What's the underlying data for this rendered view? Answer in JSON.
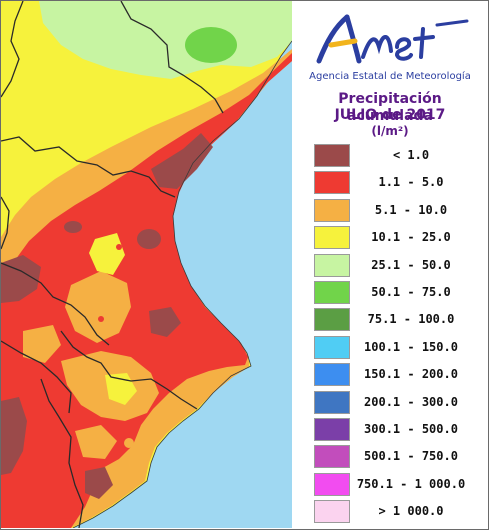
{
  "header": {
    "logo_text": "AEmet",
    "agency": "Agencia Estatal de Meteorología",
    "title_line1": "Precipitación acumulada",
    "title_line2": "JULIO de 2017",
    "title_units": "(l/m²)"
  },
  "legend": [
    {
      "label": "< 1.0",
      "color": "#9b4a4a"
    },
    {
      "label": "1.1 - 5.0",
      "color": "#ee3a32"
    },
    {
      "label": "5.1 - 10.0",
      "color": "#f5b044"
    },
    {
      "label": "10.1 - 25.0",
      "color": "#f6f23c"
    },
    {
      "label": "25.1 - 50.0",
      "color": "#c7f4a2"
    },
    {
      "label": "50.1 - 75.0",
      "color": "#71d44a"
    },
    {
      "label": "75.1 - 100.0",
      "color": "#5b9e44"
    },
    {
      "label": "100.1 - 150.0",
      "color": "#50cdf4"
    },
    {
      "label": "150.1 - 200.0",
      "color": "#3d8ef0"
    },
    {
      "label": "200.1 - 300.0",
      "color": "#3f76c2"
    },
    {
      "label": "300.1 - 500.0",
      "color": "#7b3fa8"
    },
    {
      "label": "500.1 - 750.0",
      "color": "#c24dbc"
    },
    {
      "label": "750.1 - 1 000.0",
      "color": "#f24cf0"
    },
    {
      "label": "> 1 000.0",
      "color": "#fbd3ef"
    }
  ]
}
